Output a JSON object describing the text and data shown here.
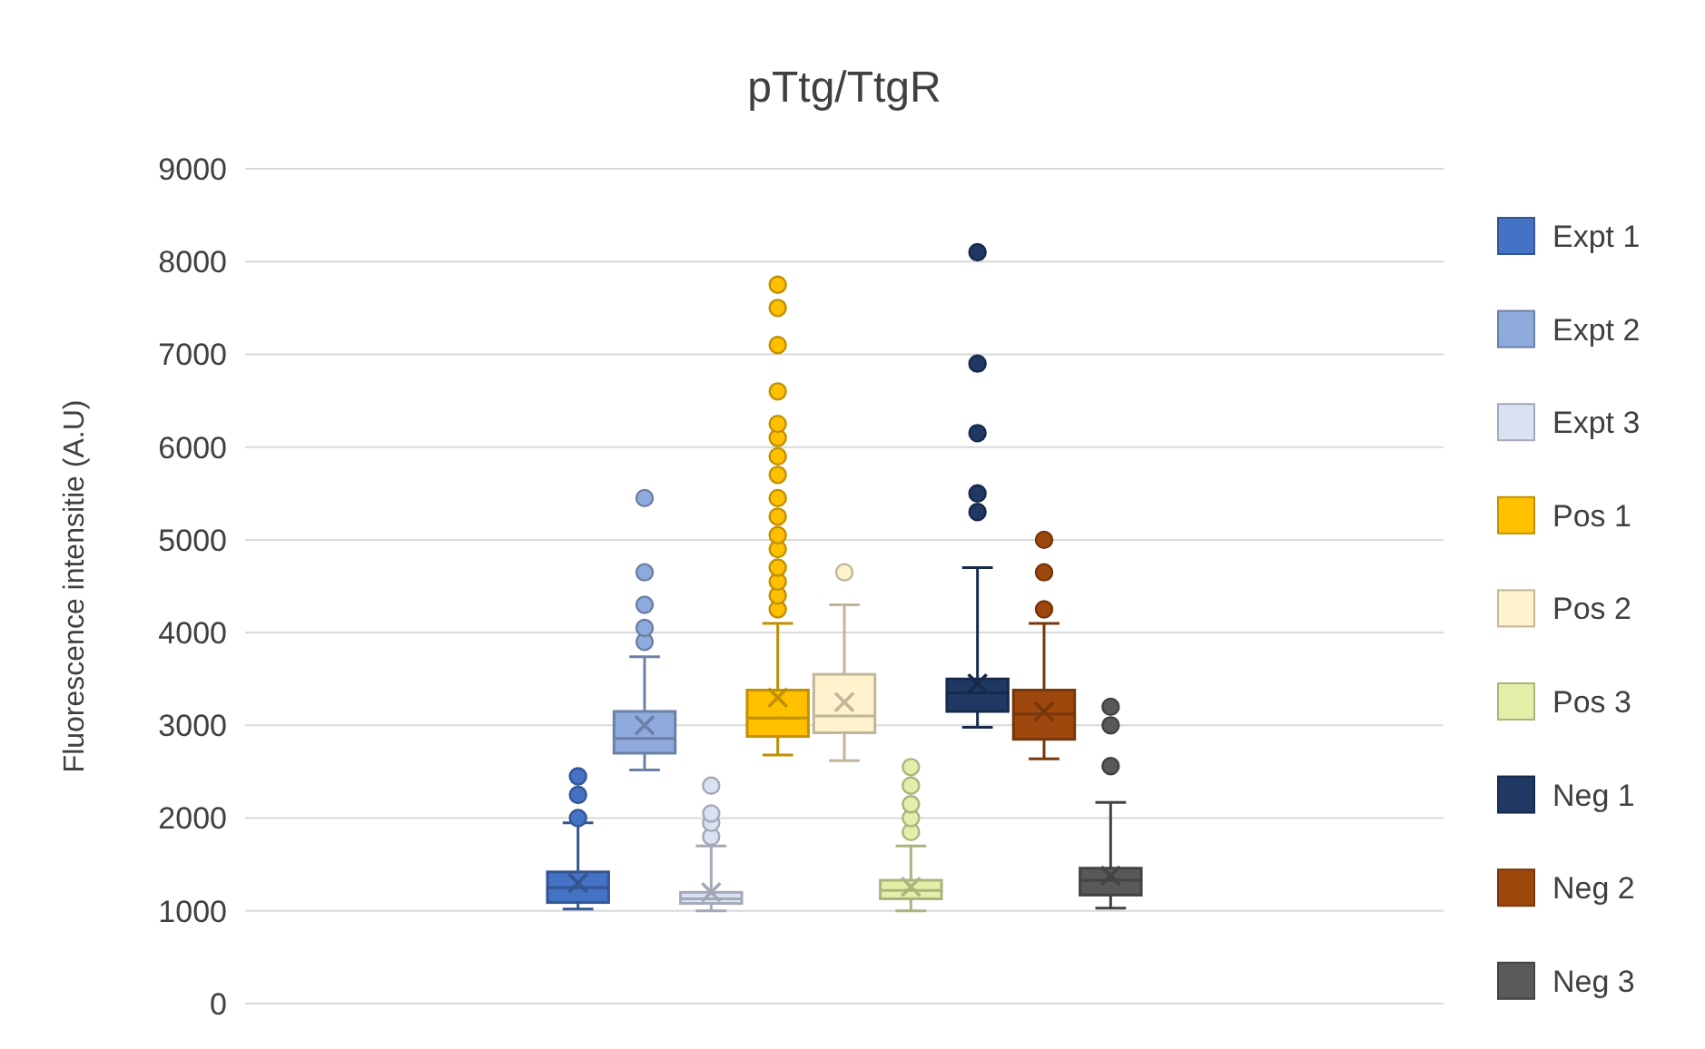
{
  "chart_data": {
    "type": "box",
    "title": "pTtg/TtgR",
    "ylabel": "Fluorescence intensitie (A.U)",
    "categories": [
      null
    ],
    "ylim": [
      0,
      9000
    ],
    "yticks": [
      0,
      1000,
      2000,
      3000,
      4000,
      5000,
      6000,
      7000,
      8000,
      9000
    ],
    "grid": "y",
    "legend": "right",
    "marker": "circle",
    "series": [
      {
        "name": "Expt 1",
        "color": "#4472c4",
        "boxes": [
          {
            "low": 1020,
            "q1": 1090,
            "median": 1250,
            "q3": 1420,
            "high": 1950,
            "mean": 1300,
            "outliers": [
              2000,
              2250,
              2450
            ]
          }
        ]
      },
      {
        "name": "Expt 2",
        "color": "#8faadc",
        "boxes": [
          {
            "low": 2520,
            "q1": 2700,
            "median": 2860,
            "q3": 3150,
            "high": 3740,
            "mean": 3000,
            "outliers": [
              3900,
              4050,
              4300,
              4650,
              5450
            ]
          }
        ]
      },
      {
        "name": "Expt 3",
        "color": "#d9e1f2",
        "boxes": [
          {
            "low": 1000,
            "q1": 1080,
            "median": 1130,
            "q3": 1200,
            "high": 1700,
            "mean": 1200,
            "outliers": [
              1800,
              1950,
              2050,
              2350
            ]
          }
        ]
      },
      {
        "name": "Pos 1",
        "color": "#ffc000",
        "boxes": [
          {
            "low": 2680,
            "q1": 2880,
            "median": 3080,
            "q3": 3380,
            "high": 4100,
            "mean": 3300,
            "outliers": [
              4250,
              4400,
              4550,
              4700,
              4900,
              5050,
              5250,
              5450,
              5700,
              5900,
              6100,
              6250,
              6600,
              7100,
              7500,
              7750
            ]
          }
        ]
      },
      {
        "name": "Pos 2",
        "color": "#fff2cc",
        "boxes": [
          {
            "low": 2620,
            "q1": 2920,
            "median": 3100,
            "q3": 3550,
            "high": 4300,
            "mean": 3250,
            "outliers": [
              4650
            ]
          }
        ]
      },
      {
        "name": "Pos 3",
        "color": "#e2efa8",
        "boxes": [
          {
            "low": 1000,
            "q1": 1130,
            "median": 1220,
            "q3": 1330,
            "high": 1700,
            "mean": 1260,
            "outliers": [
              1850,
              2000,
              2150,
              2350,
              2550
            ]
          }
        ]
      },
      {
        "name": "Neg 1",
        "color": "#203864",
        "boxes": [
          {
            "low": 2980,
            "q1": 3150,
            "median": 3350,
            "q3": 3500,
            "high": 4700,
            "mean": 3450,
            "outliers": [
              5300,
              5500,
              6150,
              6900,
              8100
            ]
          }
        ]
      },
      {
        "name": "Neg 2",
        "color": "#9e480e",
        "boxes": [
          {
            "low": 2640,
            "q1": 2850,
            "median": 3120,
            "q3": 3380,
            "high": 4100,
            "mean": 3150,
            "outliers": [
              4250,
              4650,
              5000
            ]
          }
        ]
      },
      {
        "name": "Neg 3",
        "color": "#595959",
        "boxes": [
          {
            "low": 1030,
            "q1": 1170,
            "median": 1330,
            "q3": 1460,
            "high": 2170,
            "mean": 1380,
            "outliers": [
              2560,
              3000,
              3200
            ]
          }
        ]
      }
    ]
  }
}
